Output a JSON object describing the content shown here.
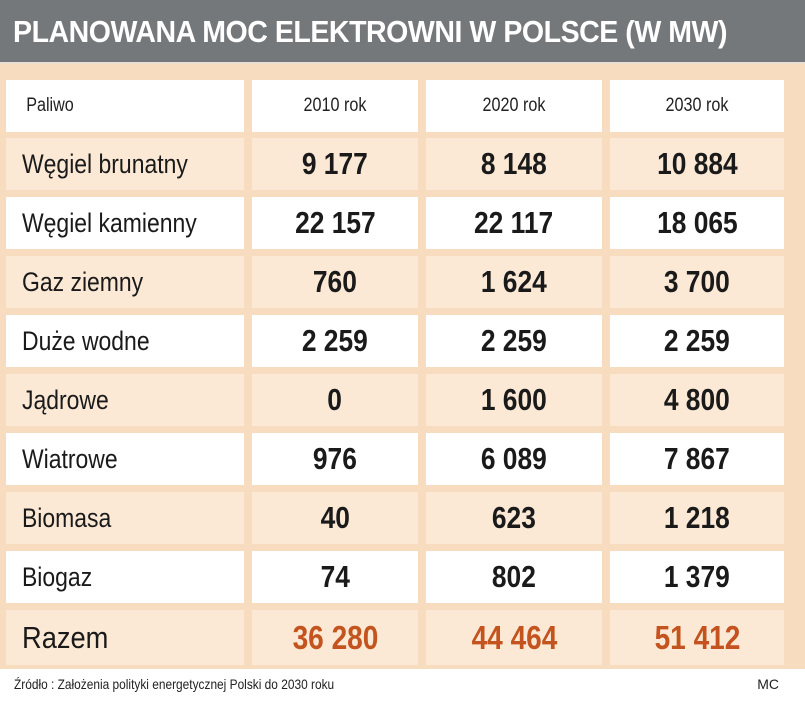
{
  "chart_data": {
    "type": "table",
    "title": "PLANOWANA MOC ELEKTROWNI W POLSCE (W MW)",
    "columns": [
      "Paliwo",
      "2010 rok",
      "2020 rok",
      "2030 rok"
    ],
    "rows": [
      {
        "label": "Węgiel brunatny",
        "values": [
          "9 177",
          "8 148",
          "10 884"
        ]
      },
      {
        "label": "Węgiel kamienny",
        "values": [
          "22 157",
          "22 117",
          "18 065"
        ]
      },
      {
        "label": "Gaz ziemny",
        "values": [
          "760",
          "1 624",
          "3 700"
        ]
      },
      {
        "label": "Duże wodne",
        "values": [
          "2 259",
          "2 259",
          "2 259"
        ]
      },
      {
        "label": "Jądrowe",
        "values": [
          "0",
          "1 600",
          "4 800"
        ]
      },
      {
        "label": "Wiatrowe",
        "values": [
          "976",
          "6 089",
          "7 867"
        ]
      },
      {
        "label": "Biomasa",
        "values": [
          "40",
          "623",
          "1 218"
        ]
      },
      {
        "label": "Biogaz",
        "values": [
          "74",
          "802",
          "1 379"
        ]
      }
    ],
    "total": {
      "label": "Razem",
      "values": [
        "36 280",
        "44 464",
        "51 412"
      ]
    },
    "source": "Źródło : Założenia polityki energetycznej Polski do 2030 roku",
    "author": "MC",
    "colors": {
      "title_bar": "#75787b",
      "background": "#f7dcc0",
      "row_tan": "#fbe9d5",
      "row_white": "#ffffff",
      "total_value": "#c4541f"
    }
  }
}
